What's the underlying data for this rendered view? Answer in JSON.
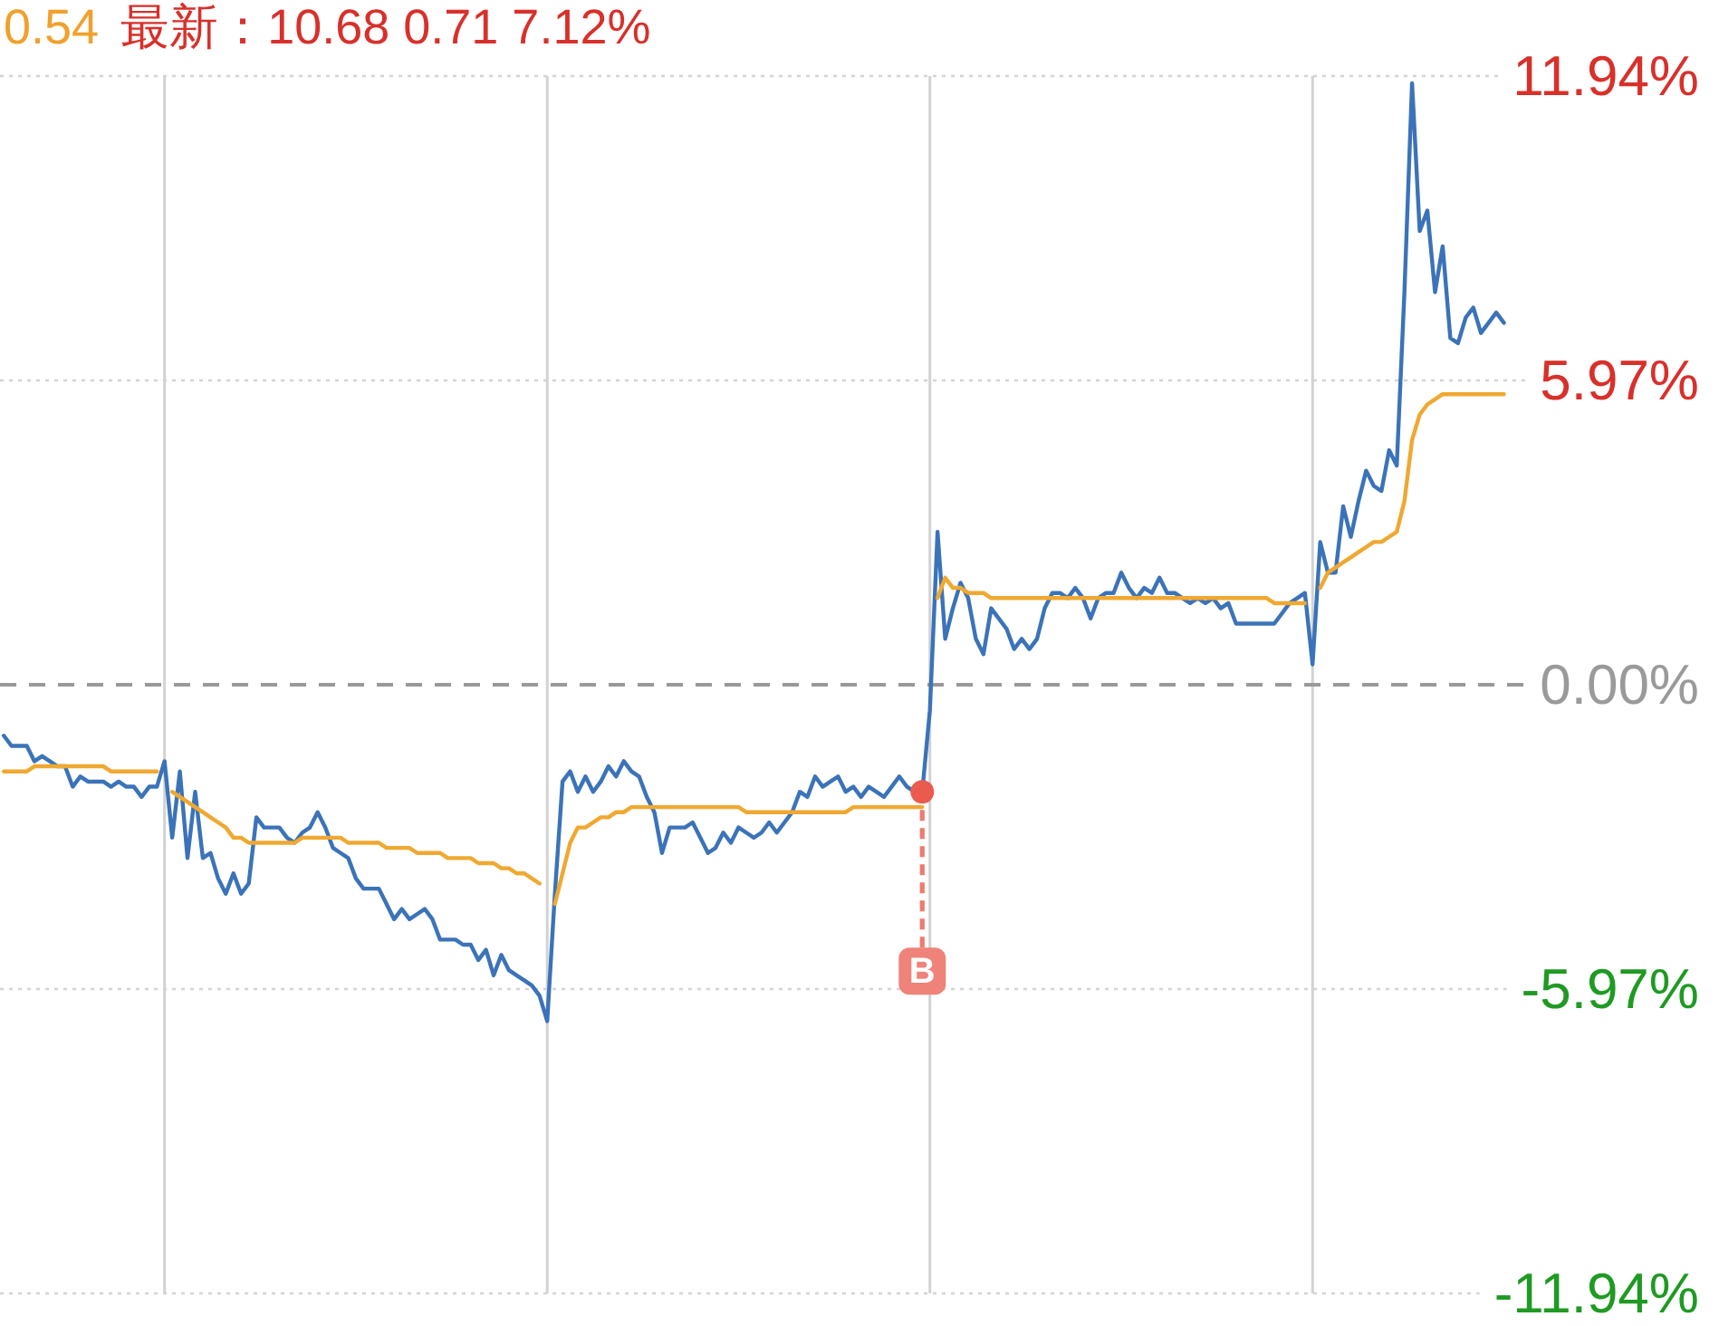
{
  "chart_data": {
    "type": "line",
    "categories": [
      null,
      null,
      null,
      null,
      null,
      null,
      null,
      null,
      null,
      null,
      null,
      null,
      null,
      null,
      null,
      null,
      null,
      null,
      null,
      null,
      null,
      null,
      null,
      null,
      null,
      null,
      null,
      null,
      null,
      null,
      null,
      null,
      null,
      null,
      null,
      null,
      null,
      null,
      null,
      null,
      null,
      null,
      null,
      null,
      null,
      null,
      null,
      null,
      null,
      null,
      null,
      null,
      null,
      null,
      null,
      null,
      null,
      null,
      null,
      null,
      null,
      null,
      null,
      null,
      null,
      null,
      null,
      null,
      null,
      null,
      null,
      null,
      null,
      null,
      null,
      null,
      null,
      null,
      null,
      null,
      null,
      null,
      null,
      null,
      null,
      null,
      null,
      null,
      null,
      null,
      null,
      null,
      null,
      null,
      null,
      null,
      null,
      null,
      null,
      null,
      null,
      null,
      null,
      null,
      null,
      null,
      null,
      null,
      null,
      null,
      null,
      null,
      null,
      null,
      null,
      null,
      null,
      null,
      null,
      null,
      null,
      null,
      null,
      null,
      null,
      null,
      null,
      null,
      null,
      null,
      null,
      null,
      null,
      null,
      null,
      null,
      null,
      null,
      null,
      null,
      null,
      null,
      null,
      null,
      null,
      null,
      null,
      null,
      null,
      null,
      null,
      null,
      null,
      null,
      null,
      null,
      null,
      null,
      null,
      null,
      null,
      null,
      null,
      null,
      null,
      null,
      null,
      null,
      null,
      null,
      null,
      null,
      null,
      null,
      null,
      null,
      null,
      null,
      null,
      null,
      null,
      null,
      null,
      null,
      null,
      null,
      null,
      null,
      null,
      null,
      null,
      null,
      null,
      null,
      null,
      null,
      null,
      null,
      null,
      null,
      null,
      null,
      null,
      null,
      null,
      null,
      null,
      null,
      null,
      null,
      null,
      null,
      null,
      null,
      null,
      null,
      null,
      null,
      null,
      null,
      null,
      null
    ],
    "ylim": [
      -11.94,
      11.94
    ],
    "yticks": [
      {
        "value": 11.94,
        "label": "11.94%"
      },
      {
        "value": 5.97,
        "label": "5.97%"
      },
      {
        "value": 0,
        "label": "0.00%"
      },
      {
        "value": -5.97,
        "label": "-5.97%"
      },
      {
        "value": -11.94,
        "label": "-11.94%"
      }
    ],
    "tick_labels": "y",
    "grid": true,
    "ref_lines": [
      {
        "axis": "y",
        "value": 0,
        "color": "#999999",
        "line_style": "dashed"
      }
    ],
    "annotations": [
      "0.54",
      "最新：10.68 0.71 7.12%"
    ],
    "series": [
      {
        "color": "#3b73b9",
        "values": [
          -1.0,
          -1.2,
          -1.2,
          -1.2,
          -1.5,
          -1.4,
          -1.5,
          -1.6,
          -1.6,
          -2.0,
          -1.8,
          -1.9,
          -1.9,
          -1.9,
          -2.0,
          -1.9,
          -2.0,
          -2.0,
          -2.2,
          -2.0,
          -2.0,
          -1.5,
          -3.0,
          -1.7,
          -3.4,
          -2.1,
          -3.4,
          -3.3,
          -3.8,
          -4.1,
          -3.7,
          -4.1,
          -3.9,
          -2.6,
          -2.8,
          -2.8,
          -2.8,
          -3.0,
          -3.1,
          -2.9,
          -2.8,
          -2.5,
          -2.8,
          -3.2,
          -3.3,
          -3.4,
          -3.8,
          -4.0,
          -4.0,
          -4.0,
          -4.3,
          -4.6,
          -4.4,
          -4.6,
          -4.5,
          -4.4,
          -4.6,
          -5.0,
          -5.0,
          -5.0,
          -5.1,
          -5.1,
          -5.4,
          -5.2,
          -5.7,
          -5.3,
          -5.6,
          -5.7,
          -5.8,
          -5.9,
          -6.1,
          -6.6,
          -4.1,
          -1.9,
          -1.7,
          -2.1,
          -1.8,
          -2.1,
          -1.9,
          -1.6,
          -1.8,
          -1.5,
          -1.7,
          -1.8,
          -2.2,
          -2.5,
          -3.3,
          -2.8,
          -2.8,
          -2.8,
          -2.7,
          -3.0,
          -3.3,
          -3.2,
          -2.9,
          -3.1,
          -2.8,
          -2.9,
          -3.0,
          -2.9,
          -2.7,
          -2.9,
          -2.7,
          -2.5,
          -2.1,
          -2.2,
          -1.8,
          -2.0,
          -1.9,
          -1.8,
          -2.1,
          -2.0,
          -2.2,
          -2.0,
          -2.1,
          -2.2,
          -2.0,
          -1.8,
          -2.0,
          -2.1,
          -2.1,
          -0.5,
          3.0,
          0.9,
          1.5,
          2.0,
          1.7,
          0.9,
          0.6,
          1.5,
          1.3,
          1.1,
          0.7,
          0.9,
          0.7,
          0.9,
          1.5,
          1.8,
          1.8,
          1.7,
          1.9,
          1.7,
          1.3,
          1.7,
          1.8,
          1.8,
          2.2,
          1.9,
          1.7,
          1.9,
          1.8,
          2.1,
          1.8,
          1.8,
          1.7,
          1.6,
          1.7,
          1.6,
          1.7,
          1.5,
          1.6,
          1.2,
          1.2,
          1.2,
          1.2,
          1.2,
          1.2,
          1.4,
          1.6,
          1.7,
          1.8,
          0.4,
          2.8,
          2.2,
          2.2,
          3.5,
          2.9,
          3.6,
          4.2,
          3.9,
          3.8,
          4.6,
          4.3,
          7.7,
          11.8,
          8.9,
          9.3,
          7.7,
          8.6,
          6.8,
          6.7,
          7.2,
          7.4,
          6.9,
          7.1,
          7.3,
          7.1,
          null,
          null,
          null,
          null,
          null,
          null,
          null,
          null,
          null,
          null,
          null,
          null,
          null,
          null,
          null,
          null,
          null,
          null,
          null,
          null,
          null,
          null,
          null,
          null,
          null
        ]
      },
      {
        "color": "#f0a830",
        "values": [
          -1.7,
          -1.7,
          -1.7,
          -1.7,
          -1.6,
          -1.6,
          -1.6,
          -1.6,
          -1.6,
          -1.6,
          -1.6,
          -1.6,
          -1.6,
          -1.6,
          -1.7,
          -1.7,
          -1.7,
          -1.7,
          -1.7,
          -1.7,
          -1.7,
          null,
          -2.1,
          -2.2,
          -2.3,
          -2.4,
          -2.5,
          -2.6,
          -2.7,
          -2.8,
          -3.0,
          -3.0,
          -3.1,
          -3.1,
          -3.1,
          -3.1,
          -3.1,
          -3.1,
          -3.1,
          -3.0,
          -3.0,
          -3.0,
          -3.0,
          -3.0,
          -3.0,
          -3.1,
          -3.1,
          -3.1,
          -3.1,
          -3.1,
          -3.2,
          -3.2,
          -3.2,
          -3.2,
          -3.3,
          -3.3,
          -3.3,
          -3.3,
          -3.4,
          -3.4,
          -3.4,
          -3.4,
          -3.5,
          -3.5,
          -3.5,
          -3.6,
          -3.6,
          -3.7,
          -3.7,
          -3.8,
          -3.9,
          null,
          -4.3,
          -3.7,
          -3.1,
          -2.8,
          -2.8,
          -2.7,
          -2.6,
          -2.6,
          -2.5,
          -2.5,
          -2.4,
          -2.4,
          -2.4,
          -2.4,
          -2.4,
          -2.4,
          -2.4,
          -2.4,
          -2.4,
          -2.4,
          -2.4,
          -2.4,
          -2.4,
          -2.4,
          -2.4,
          -2.5,
          -2.5,
          -2.5,
          -2.5,
          -2.5,
          -2.5,
          -2.5,
          -2.5,
          -2.5,
          -2.5,
          -2.5,
          -2.5,
          -2.5,
          -2.5,
          -2.4,
          -2.4,
          -2.4,
          -2.4,
          -2.4,
          -2.4,
          -2.4,
          -2.4,
          -2.4,
          -2.4,
          null,
          1.7,
          2.1,
          1.9,
          1.9,
          1.8,
          1.8,
          1.8,
          1.7,
          1.7,
          1.7,
          1.7,
          1.7,
          1.7,
          1.7,
          1.7,
          1.7,
          1.7,
          1.7,
          1.7,
          1.7,
          1.7,
          1.7,
          1.7,
          1.7,
          1.7,
          1.7,
          1.7,
          1.7,
          1.7,
          1.7,
          1.7,
          1.7,
          1.7,
          1.7,
          1.7,
          1.7,
          1.7,
          1.7,
          1.7,
          1.7,
          1.7,
          1.7,
          1.7,
          1.7,
          1.6,
          1.6,
          1.6,
          1.6,
          1.6,
          null,
          1.9,
          2.2,
          2.3,
          2.4,
          2.5,
          2.6,
          2.7,
          2.8,
          2.8,
          2.9,
          3.0,
          3.6,
          4.8,
          5.3,
          5.5,
          5.6,
          5.7,
          5.7,
          5.7,
          5.7,
          5.7,
          5.7,
          5.7,
          5.7,
          5.7,
          null,
          null,
          null,
          null,
          null,
          null,
          null,
          null,
          null,
          null,
          null,
          null,
          null,
          null,
          null,
          null,
          null,
          null,
          null,
          null,
          null,
          null,
          null,
          null,
          null
        ]
      },
      {
        "type": "scatter",
        "name": "B",
        "color": "#ea5a4e",
        "marker": "circle",
        "values": [
          null,
          null,
          null,
          null,
          null,
          null,
          null,
          null,
          null,
          null,
          null,
          null,
          null,
          null,
          null,
          null,
          null,
          null,
          null,
          null,
          null,
          null,
          null,
          null,
          null,
          null,
          null,
          null,
          null,
          null,
          null,
          null,
          null,
          null,
          null,
          null,
          null,
          null,
          null,
          null,
          null,
          null,
          null,
          null,
          null,
          null,
          null,
          null,
          null,
          null,
          null,
          null,
          null,
          null,
          null,
          null,
          null,
          null,
          null,
          null,
          null,
          null,
          null,
          null,
          null,
          null,
          null,
          null,
          null,
          null,
          null,
          null,
          null,
          null,
          null,
          null,
          null,
          null,
          null,
          null,
          null,
          null,
          null,
          null,
          null,
          null,
          null,
          null,
          null,
          null,
          null,
          null,
          null,
          null,
          null,
          null,
          null,
          null,
          null,
          null,
          null,
          null,
          null,
          null,
          null,
          null,
          null,
          null,
          null,
          null,
          null,
          null,
          null,
          null,
          null,
          null,
          null,
          null,
          null,
          null,
          -2.1,
          null,
          null,
          null,
          null,
          null,
          null,
          null,
          null,
          null,
          null,
          null,
          null,
          null,
          null,
          null,
          null,
          null,
          null,
          null,
          null,
          null,
          null,
          null,
          null,
          null,
          null,
          null,
          null,
          null,
          null,
          null,
          null,
          null,
          null,
          null,
          null,
          null,
          null,
          null,
          null,
          null,
          null,
          null,
          null,
          null,
          null,
          null,
          null,
          null,
          null,
          null,
          null,
          null,
          null,
          null,
          null,
          null,
          null,
          null,
          null,
          null,
          null,
          null,
          null,
          null,
          null,
          null,
          null,
          null,
          null,
          null,
          null,
          null,
          null,
          null,
          null,
          null,
          null,
          null,
          null,
          null,
          null,
          null,
          null,
          null,
          null,
          null,
          null,
          null,
          null,
          null,
          null,
          null,
          null,
          null,
          null,
          null,
          null,
          null,
          null,
          null
        ]
      }
    ]
  }
}
